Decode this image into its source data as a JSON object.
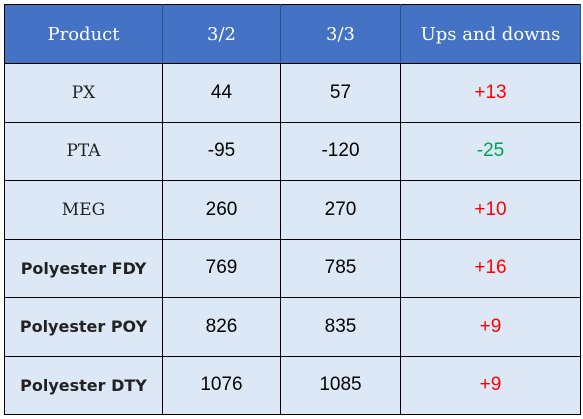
{
  "table": {
    "headers": [
      "Product",
      "3/2",
      "3/3",
      "Ups and downs"
    ],
    "rows": [
      {
        "product": "PX",
        "v1": "44",
        "v2": "57",
        "change": "+13"
      },
      {
        "product": "PTA",
        "v1": "-95",
        "v2": "-120",
        "change": "-25"
      },
      {
        "product": "MEG",
        "v1": "260",
        "v2": "270",
        "change": "+10"
      },
      {
        "product": "Polyester FDY",
        "v1": "769",
        "v2": "785",
        "change": "+16"
      },
      {
        "product": "Polyester POY",
        "v1": "826",
        "v2": "835",
        "change": "+9"
      },
      {
        "product": "Polyester DTY",
        "v1": "1076",
        "v2": "1085",
        "change": "+9"
      }
    ]
  },
  "colors": {
    "header_bg": "#4472c4",
    "cell_bg": "#dde8f6",
    "up": "#ff0000",
    "down": "#00a050"
  }
}
